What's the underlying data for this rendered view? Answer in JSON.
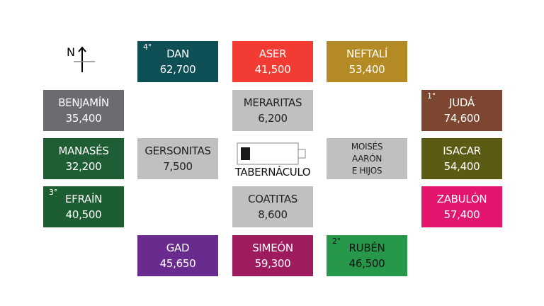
{
  "compass": {
    "label": "N"
  },
  "tabernacle": {
    "label": "TABERNÁCULO"
  },
  "tribes": {
    "dan": {
      "name": "DAN",
      "count": "62,700",
      "order": "4°",
      "color": "#0e4f55"
    },
    "aser": {
      "name": "ASER",
      "count": "41,500",
      "color": "#f23b33"
    },
    "neftali": {
      "name": "NEFTALÍ",
      "count": "53,400",
      "color": "#b48a25"
    },
    "benjamin": {
      "name": "BENJAMÍN",
      "count": "35,400",
      "color": "#6b6b70"
    },
    "juda": {
      "name": "JUDÁ",
      "count": "74,600",
      "order": "1°",
      "color": "#7d4631"
    },
    "manases": {
      "name": "MANASÉS",
      "count": "32,200",
      "color": "#1f5e35"
    },
    "isacar": {
      "name": "ISACAR",
      "count": "54,400",
      "color": "#5c5b13"
    },
    "efrain": {
      "name": "EFRAÍN",
      "count": "40,500",
      "order": "3°",
      "color": "#1c5d31"
    },
    "zabulon": {
      "name": "ZABULÓN",
      "count": "57,400",
      "color": "#e2166e"
    },
    "gad": {
      "name": "GAD",
      "count": "45,650",
      "color": "#6a2b8f"
    },
    "simeon": {
      "name": "SIMEÓN",
      "count": "59,300",
      "color": "#9e1b5e"
    },
    "ruben": {
      "name": "RUBÉN",
      "count": "46,500",
      "order": "2°",
      "color": "#27984a"
    }
  },
  "levites": {
    "meraritas": {
      "name": "MERARITAS",
      "count": "6,200"
    },
    "gersonitas": {
      "name": "GERSONITAS",
      "count": "7,500"
    },
    "coatitas": {
      "name": "COATITAS",
      "count": "8,600"
    },
    "moises": {
      "line1": "MOISÉS",
      "line2": "AARÓN",
      "line3": "E HIJOS"
    }
  }
}
